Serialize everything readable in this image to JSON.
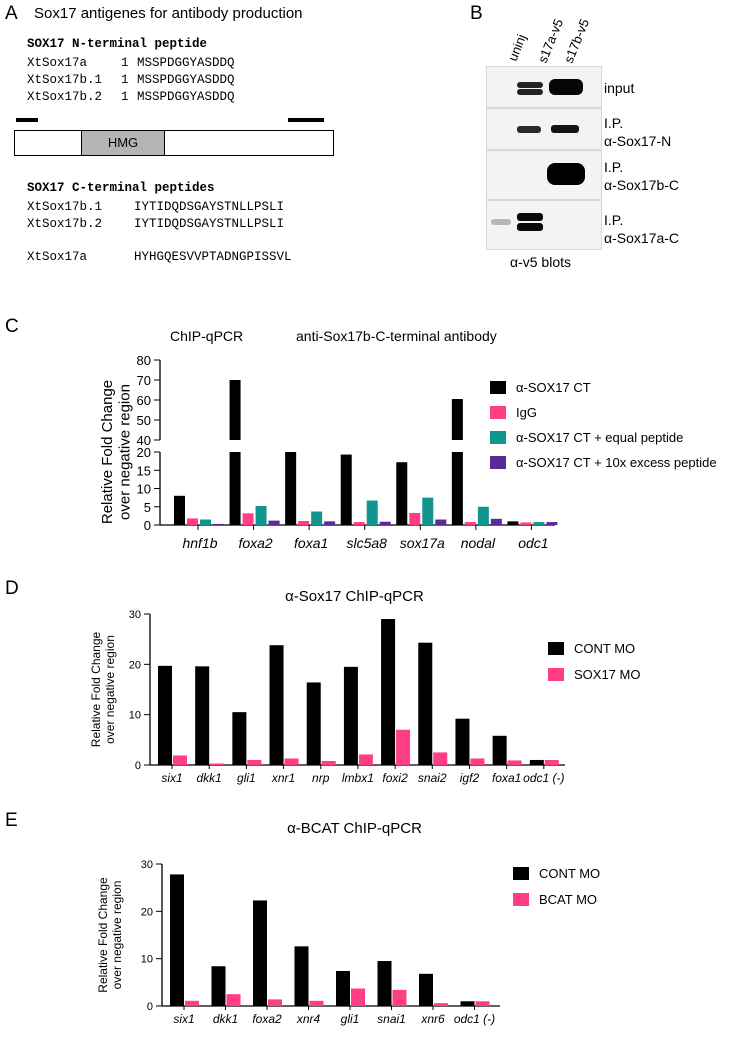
{
  "panelA": {
    "letter": "A",
    "title": "Sox17 antigenes for antibody production",
    "n_header": "SOX17 N-terminal peptide",
    "n_peptides": [
      {
        "name": "XtSox17a",
        "pos": "1",
        "seq": "MSSPDGGYASDDQ"
      },
      {
        "name": "XtSox17b.1",
        "pos": "1",
        "seq": "MSSPDGGYASDDQ"
      },
      {
        "name": "XtSox17b.2",
        "pos": "1",
        "seq": "MSSPDGGYASDDQ"
      }
    ],
    "hmg_label": "HMG",
    "c_header": "SOX17 C-terminal peptides",
    "c_peptides": [
      {
        "name": "XtSox17b.1",
        "seq": "IYTIDQDSGAYSTNLLPSLI"
      },
      {
        "name": "XtSox17b.2",
        "seq": "IYTIDQDSGAYSTNLLPSLI"
      },
      {
        "name": "XtSox17a",
        "seq": "HYHGQESVVPTADNGPISSVL"
      }
    ]
  },
  "panelB": {
    "letter": "B",
    "lanes": [
      "uninj",
      "s17a-v5",
      "s17b-v5"
    ],
    "rows": [
      {
        "line1": "input",
        "line2": ""
      },
      {
        "line1": "I.P.",
        "line2": "α-Sox17-N"
      },
      {
        "line1": "I.P.",
        "line2": "α-Sox17b-C"
      },
      {
        "line1": "I.P.",
        "line2": "α-Sox17a-C"
      }
    ],
    "caption": "α-v5 blots"
  },
  "panelC": {
    "letter": "C",
    "title_left": "ChIP-qPCR",
    "title_right": "anti-Sox17b-C-terminal antibody"
  },
  "panelD": {
    "letter": "D",
    "title": "α-Sox17 ChIP-qPCR"
  },
  "panelE": {
    "letter": "E",
    "title": "α-BCAT ChIP-qPCR"
  },
  "colors": {
    "black": "#000000",
    "pink": "#ff3e85",
    "teal": "#13958f",
    "purple": "#5a2a96"
  },
  "chart_data": [
    {
      "type": "bar",
      "ylabel": "Relative Fold Change over negative region",
      "broken_axis": true,
      "y_ticks_lower": [
        0,
        5,
        10,
        15,
        20
      ],
      "y_ticks_upper": [
        40,
        50,
        60,
        70,
        80
      ],
      "categories": [
        "hnf1b",
        "foxa2",
        "foxa1",
        "slc5a8",
        "sox17a",
        "nodal",
        "odc1"
      ],
      "legend_position": "right",
      "series": [
        {
          "name": "α-SOX17 CT",
          "color": "#000000",
          "values": [
            8,
            70,
            20.5,
            19.3,
            17.2,
            60.5,
            1
          ]
        },
        {
          "name": "IgG",
          "color": "#ff3e85",
          "values": [
            1.8,
            3.2,
            1.1,
            0.8,
            3.3,
            0.8,
            0.7
          ]
        },
        {
          "name": "α-SOX17 CT + equal peptide",
          "color": "#13958f",
          "values": [
            1.5,
            5.2,
            3.7,
            6.7,
            7.5,
            5,
            0.8
          ]
        },
        {
          "name": "α-SOX17 CT + 10x excess peptide",
          "color": "#5a2a96",
          "values": [
            0.3,
            1.2,
            1,
            0.9,
            1.5,
            1.7,
            0.8
          ]
        }
      ]
    },
    {
      "type": "bar",
      "ylabel": "Relative Fold Change over negative region",
      "ylim": [
        0,
        30
      ],
      "y_ticks": [
        0,
        10,
        20,
        30
      ],
      "categories": [
        "six1",
        "dkk1",
        "gli1",
        "xnr1",
        "nrp",
        "lmbx1",
        "foxi2",
        "snai2",
        "igf2",
        "foxa1",
        "odc1 (-)"
      ],
      "legend_position": "right",
      "series": [
        {
          "name": "CONT MO",
          "color": "#000000",
          "values": [
            19.7,
            19.6,
            10.5,
            23.8,
            16.4,
            19.5,
            29,
            24.3,
            9.2,
            5.8,
            1
          ]
        },
        {
          "name": "SOX17 MO",
          "color": "#ff3e85",
          "values": [
            1.9,
            0.3,
            1,
            1.3,
            0.8,
            2.1,
            7,
            2.5,
            1.3,
            0.9,
            1
          ]
        }
      ]
    },
    {
      "type": "bar",
      "ylabel": "Relative Fold Change over negative region",
      "ylim": [
        0,
        30
      ],
      "y_ticks": [
        0,
        10,
        20,
        30
      ],
      "categories": [
        "six1",
        "dkk1",
        "foxa2",
        "xnr4",
        "gli1",
        "snai1",
        "xnr6",
        "odc1 (-)"
      ],
      "legend_position": "right",
      "series": [
        {
          "name": "CONT MO",
          "color": "#000000",
          "values": [
            27.8,
            8.4,
            22.3,
            12.6,
            7.4,
            9.5,
            6.8,
            1
          ]
        },
        {
          "name": "BCAT MO",
          "color": "#ff3e85",
          "values": [
            1.1,
            2.5,
            1.4,
            1.1,
            3.7,
            3.4,
            0.6,
            1
          ]
        }
      ]
    }
  ]
}
